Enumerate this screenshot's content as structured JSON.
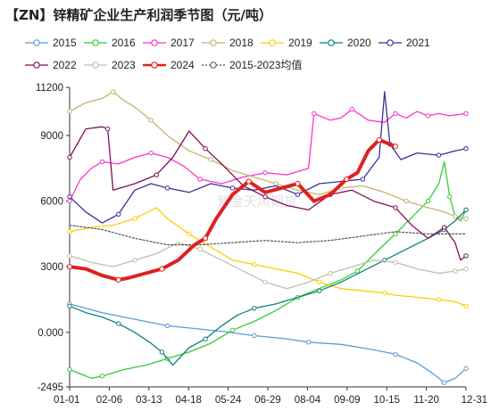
{
  "chart_data": {
    "type": "line",
    "title": "【ZN】锌精矿企业生产利润季节图（元/吨）",
    "watermark": "紫金天风期货",
    "xlabel": "",
    "ylabel": "",
    "x_ticks": [
      "01-01",
      "02-06",
      "03-13",
      "04-18",
      "05-24",
      "06-29",
      "08-04",
      "09-09",
      "10-15",
      "11-20",
      "12-31"
    ],
    "y_ticks": [
      "11200",
      "9000",
      "6000",
      "3000",
      "0.000",
      "-2495"
    ],
    "ylim": [
      -2495,
      11200
    ],
    "xlim": [
      0,
      365
    ],
    "legend_position": "top",
    "grid": false,
    "series": [
      {
        "name": "2015",
        "color": "#5b9bd5",
        "width": 1.3,
        "dash": "",
        "marker": "circle",
        "x": [
          0,
          30,
          60,
          90,
          110,
          140,
          170,
          190,
          200,
          220,
          250,
          280,
          300,
          320,
          335,
          345,
          355,
          365
        ],
        "y": [
          1300,
          900,
          600,
          300,
          200,
          50,
          -150,
          -250,
          -300,
          -450,
          -550,
          -800,
          -1000,
          -1400,
          -1900,
          -2300,
          -2100,
          -1650
        ]
      },
      {
        "name": "2016",
        "color": "#33cc33",
        "width": 1.3,
        "dash": "",
        "marker": "circle",
        "x": [
          0,
          10,
          20,
          30,
          50,
          70,
          90,
          110,
          130,
          150,
          170,
          190,
          210,
          230,
          250,
          265,
          275,
          285,
          300,
          310,
          320,
          330,
          340,
          345,
          350,
          355,
          360,
          365
        ],
        "y": [
          -1700,
          -1900,
          -2100,
          -2000,
          -1700,
          -1500,
          -1200,
          -900,
          -500,
          100,
          500,
          1000,
          1600,
          2000,
          2400,
          2800,
          3300,
          3800,
          4500,
          5000,
          5500,
          6000,
          6800,
          7800,
          6200,
          5300,
          5100,
          5600
        ]
      },
      {
        "name": "2017",
        "color": "#ff33cc",
        "width": 1.3,
        "dash": "",
        "marker": "circle",
        "x": [
          0,
          10,
          20,
          30,
          45,
          60,
          75,
          90,
          105,
          120,
          140,
          160,
          180,
          200,
          220,
          225,
          240,
          250,
          260,
          275,
          290,
          300,
          310,
          320,
          330,
          340,
          350,
          365
        ],
        "y": [
          6000,
          7000,
          7500,
          7800,
          7700,
          8000,
          8200,
          8000,
          7600,
          7000,
          6800,
          7100,
          7300,
          7200,
          7500,
          10000,
          9700,
          9800,
          10200,
          9700,
          9600,
          10000,
          9800,
          10100,
          9900,
          10000,
          9900,
          10000
        ]
      },
      {
        "name": "2018",
        "color": "#c8b070",
        "width": 1.3,
        "dash": "",
        "marker": "circle",
        "x": [
          0,
          15,
          30,
          40,
          50,
          60,
          75,
          90,
          110,
          130,
          150,
          170,
          190,
          210,
          230,
          250,
          270,
          290,
          310,
          330,
          345,
          355,
          365
        ],
        "y": [
          10100,
          10500,
          10700,
          11000,
          10600,
          10300,
          9700,
          9000,
          8300,
          7900,
          7400,
          7100,
          6800,
          6500,
          6300,
          6600,
          6700,
          6400,
          6000,
          5700,
          5500,
          5300,
          5200
        ]
      },
      {
        "name": "2019",
        "color": "#ffcc00",
        "width": 1.3,
        "dash": "",
        "marker": "circle",
        "x": [
          0,
          20,
          40,
          60,
          80,
          90,
          110,
          130,
          150,
          170,
          190,
          210,
          230,
          250,
          270,
          290,
          300,
          320,
          340,
          355,
          365
        ],
        "y": [
          4600,
          4800,
          4900,
          5200,
          5700,
          5200,
          4500,
          3900,
          3300,
          3100,
          2900,
          2700,
          2300,
          2000,
          1900,
          1800,
          1700,
          1600,
          1500,
          1400,
          1200
        ]
      },
      {
        "name": "2020",
        "color": "#0e7f7f",
        "width": 1.3,
        "dash": "",
        "marker": "circle",
        "x": [
          0,
          15,
          30,
          45,
          60,
          75,
          85,
          95,
          110,
          125,
          140,
          155,
          170,
          190,
          210,
          230,
          250,
          270,
          290,
          310,
          330,
          345,
          355,
          365
        ],
        "y": [
          1200,
          900,
          700,
          400,
          0,
          -500,
          -900,
          -1500,
          -700,
          -300,
          300,
          800,
          1100,
          1300,
          1600,
          1900,
          2300,
          2800,
          3300,
          3800,
          4300,
          4700,
          5100,
          5600
        ]
      },
      {
        "name": "2021",
        "color": "#3d2e99",
        "width": 1.3,
        "dash": "",
        "marker": "circle",
        "x": [
          0,
          15,
          30,
          45,
          60,
          75,
          90,
          110,
          130,
          150,
          170,
          190,
          210,
          230,
          250,
          270,
          285,
          290,
          295,
          305,
          320,
          340,
          355,
          365
        ],
        "y": [
          6200,
          5500,
          5000,
          5400,
          6500,
          6800,
          6600,
          6400,
          6800,
          6600,
          6500,
          6700,
          6300,
          6800,
          6900,
          7000,
          8000,
          11000,
          8600,
          7900,
          8200,
          8100,
          8300,
          8400
        ]
      },
      {
        "name": "2022",
        "color": "#7f0f5c",
        "width": 1.3,
        "dash": "",
        "marker": "circle",
        "x": [
          0,
          15,
          30,
          35,
          40,
          60,
          80,
          95,
          110,
          125,
          140,
          160,
          180,
          200,
          220,
          240,
          260,
          280,
          300,
          315,
          330,
          345,
          355,
          360,
          365
        ],
        "y": [
          8000,
          9300,
          9400,
          9300,
          6500,
          6800,
          7200,
          8000,
          9200,
          8400,
          7700,
          6700,
          6200,
          5800,
          5600,
          6300,
          6500,
          6000,
          5700,
          4900,
          4300,
          4800,
          4100,
          3300,
          3500
        ]
      },
      {
        "name": "2023",
        "color": "#c0c0a8",
        "width": 1.3,
        "dash": "",
        "marker": "circle",
        "x": [
          0,
          20,
          40,
          60,
          80,
          100,
          120,
          140,
          160,
          180,
          200,
          220,
          240,
          260,
          280,
          300,
          320,
          340,
          355,
          365
        ],
        "y": [
          3500,
          3200,
          3000,
          3300,
          3600,
          4100,
          3800,
          3300,
          2800,
          2300,
          2000,
          2300,
          2700,
          3000,
          3300,
          3200,
          2900,
          2700,
          2800,
          2900
        ]
      },
      {
        "name": "2024",
        "color": "#e02020",
        "width": 4,
        "dash": "",
        "marker": "circle",
        "x": [
          0,
          15,
          30,
          45,
          55,
          70,
          85,
          100,
          115,
          125,
          135,
          150,
          165,
          180,
          195,
          210,
          225,
          240,
          255,
          265,
          275,
          285,
          295,
          300
        ],
        "y": [
          3000,
          2900,
          2600,
          2400,
          2500,
          2700,
          2900,
          3300,
          4000,
          4300,
          5200,
          6300,
          6900,
          6400,
          6600,
          6800,
          6000,
          6300,
          7000,
          7300,
          8300,
          8800,
          8600,
          8500
        ]
      },
      {
        "name": "2015-2023均值",
        "color": "#555555",
        "width": 1.2,
        "dash": "2,2",
        "marker": "none",
        "x": [
          0,
          30,
          60,
          90,
          120,
          150,
          180,
          210,
          240,
          270,
          300,
          330,
          365
        ],
        "y": [
          4900,
          4700,
          4300,
          4000,
          4000,
          4100,
          4200,
          4100,
          4200,
          4400,
          4600,
          4500,
          4500
        ]
      }
    ]
  }
}
